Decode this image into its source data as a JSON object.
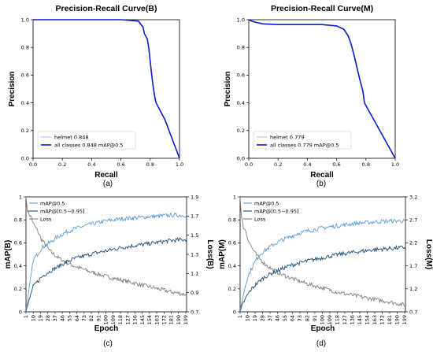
{
  "captions": [
    "(a)",
    "(b)",
    "(c)",
    "(d)"
  ],
  "chart_data": [
    {
      "type": "line",
      "title": "Precision-Recall Curve(B)",
      "xlabel": "Recall",
      "ylabel": "Precision",
      "xlim": [
        0,
        1
      ],
      "ylim": [
        0,
        1
      ],
      "xticks": [
        "0.0",
        "0.2",
        "0.4",
        "0.6",
        "0.8",
        "1.0"
      ],
      "yticks": [
        "0.0",
        "0.2",
        "0.4",
        "0.6",
        "0.8",
        "1.0"
      ],
      "legend_position": "bottom-left",
      "series": [
        {
          "name": "helmet 0.848",
          "color": "#87aef5",
          "x": [
            0,
            0.6,
            0.72,
            0.74,
            0.75,
            0.76,
            0.78,
            0.79,
            0.8,
            0.81,
            0.82,
            0.83,
            0.84,
            0.9,
            1.0
          ],
          "y": [
            1.0,
            1.0,
            0.99,
            0.96,
            0.95,
            0.9,
            0.86,
            0.8,
            0.7,
            0.6,
            0.52,
            0.45,
            0.4,
            0.28,
            0.0
          ]
        },
        {
          "name": "all classes 0.848 mAP@0.5",
          "color": "#0a1ccc",
          "x": [
            0,
            0.6,
            0.72,
            0.74,
            0.75,
            0.76,
            0.78,
            0.79,
            0.8,
            0.81,
            0.82,
            0.83,
            0.84,
            0.9,
            1.0
          ],
          "y": [
            1.0,
            1.0,
            0.99,
            0.96,
            0.95,
            0.9,
            0.86,
            0.8,
            0.7,
            0.6,
            0.52,
            0.45,
            0.4,
            0.28,
            0.0
          ]
        }
      ]
    },
    {
      "type": "line",
      "title": "Precision-Recall Curve(M)",
      "xlabel": "Recall",
      "ylabel": "Precision",
      "xlim": [
        0,
        1
      ],
      "ylim": [
        0,
        1
      ],
      "xticks": [
        "0.0",
        "0.2",
        "0.4",
        "0.6",
        "0.8",
        "1.0"
      ],
      "yticks": [
        "0.0",
        "0.2",
        "0.4",
        "0.6",
        "0.8",
        "1.0"
      ],
      "legend_position": "bottom-left",
      "series": [
        {
          "name": "helmet 0.779",
          "color": "#87aef5",
          "x": [
            0,
            0.02,
            0.05,
            0.1,
            0.2,
            0.5,
            0.6,
            0.65,
            0.68,
            0.7,
            0.72,
            0.74,
            0.76,
            0.78,
            0.79,
            1.0
          ],
          "y": [
            1.0,
            0.99,
            0.98,
            0.97,
            0.965,
            0.965,
            0.955,
            0.93,
            0.88,
            0.82,
            0.74,
            0.65,
            0.56,
            0.48,
            0.4,
            0.0
          ]
        },
        {
          "name": "all classes 0.779 mAP@0.5",
          "color": "#0a1ccc",
          "x": [
            0,
            0.02,
            0.05,
            0.1,
            0.2,
            0.5,
            0.6,
            0.65,
            0.68,
            0.7,
            0.72,
            0.74,
            0.76,
            0.78,
            0.79,
            1.0
          ],
          "y": [
            1.0,
            0.99,
            0.98,
            0.97,
            0.965,
            0.965,
            0.955,
            0.93,
            0.88,
            0.82,
            0.74,
            0.65,
            0.56,
            0.48,
            0.4,
            0.0
          ]
        }
      ]
    },
    {
      "type": "line",
      "title": "",
      "xlabel": "Epoch",
      "ylabel": "mAP(B)",
      "y2label": "Loss(B)",
      "xlim": [
        1,
        200
      ],
      "ylim": [
        0,
        1
      ],
      "y2lim": [
        0.7,
        1.9
      ],
      "xticks": [
        1,
        10,
        19,
        28,
        37,
        46,
        55,
        64,
        73,
        82,
        91,
        100,
        109,
        118,
        127,
        136,
        145,
        154,
        163,
        172,
        181,
        190,
        199
      ],
      "yticks": [
        "0",
        "0.2",
        "0.4",
        "0.6",
        "0.8",
        "1"
      ],
      "y2ticks": [
        "0.7",
        "0.9",
        "1.1",
        "1.3",
        "1.5",
        "1.7",
        "1.9"
      ],
      "legend_position": "top-left",
      "series": [
        {
          "name": "mAP@0.5",
          "color": "#5b9bd5",
          "axis": "left",
          "x": [
            1,
            3,
            5,
            8,
            10,
            15,
            20,
            25,
            30,
            40,
            50,
            60,
            70,
            80,
            100,
            120,
            140,
            160,
            180,
            199
          ],
          "y": [
            0.02,
            0.1,
            0.2,
            0.35,
            0.45,
            0.5,
            0.55,
            0.58,
            0.6,
            0.65,
            0.69,
            0.72,
            0.74,
            0.76,
            0.79,
            0.81,
            0.82,
            0.83,
            0.84,
            0.84
          ]
        },
        {
          "name": "mAP@[0.5~0.95]",
          "color": "#1f4e79",
          "axis": "left",
          "x": [
            1,
            3,
            5,
            8,
            10,
            15,
            20,
            25,
            30,
            40,
            50,
            60,
            70,
            80,
            100,
            120,
            140,
            160,
            180,
            199
          ],
          "y": [
            0.01,
            0.05,
            0.1,
            0.18,
            0.22,
            0.26,
            0.3,
            0.33,
            0.35,
            0.39,
            0.43,
            0.46,
            0.48,
            0.5,
            0.53,
            0.56,
            0.58,
            0.6,
            0.62,
            0.63
          ]
        },
        {
          "name": "Loss",
          "color": "#7f7f7f",
          "axis": "right",
          "x": [
            1,
            2,
            3,
            5,
            8,
            10,
            15,
            20,
            25,
            30,
            40,
            50,
            60,
            70,
            80,
            100,
            120,
            140,
            160,
            180,
            199
          ],
          "y": [
            1.9,
            1.82,
            1.76,
            1.72,
            1.68,
            1.62,
            1.55,
            1.46,
            1.4,
            1.34,
            1.27,
            1.22,
            1.18,
            1.15,
            1.12,
            1.07,
            1.03,
            0.99,
            0.95,
            0.91,
            0.88
          ]
        }
      ]
    },
    {
      "type": "line",
      "title": "",
      "xlabel": "Epoch",
      "ylabel": "mAP(M)",
      "y2label": "Loss(M)",
      "xlim": [
        1,
        200
      ],
      "ylim": [
        0,
        1
      ],
      "y2lim": [
        0.7,
        3.2
      ],
      "xticks": [
        1,
        10,
        19,
        28,
        37,
        46,
        55,
        64,
        73,
        82,
        91,
        100,
        109,
        118,
        127,
        136,
        145,
        154,
        163,
        172,
        181,
        190,
        199
      ],
      "yticks": [
        "0",
        "0.2",
        "0.4",
        "0.6",
        "0.8",
        "1"
      ],
      "y2ticks": [
        "0.7",
        "1.2",
        "1.7",
        "2.2",
        "2.7",
        "3.2"
      ],
      "legend_position": "top-left",
      "series": [
        {
          "name": "mAP@0.5",
          "color": "#5b9bd5",
          "axis": "left",
          "x": [
            1,
            3,
            5,
            8,
            10,
            15,
            20,
            25,
            30,
            40,
            50,
            60,
            70,
            80,
            100,
            120,
            140,
            160,
            180,
            199
          ],
          "y": [
            0.02,
            0.08,
            0.15,
            0.25,
            0.3,
            0.38,
            0.45,
            0.5,
            0.53,
            0.58,
            0.62,
            0.65,
            0.68,
            0.7,
            0.73,
            0.75,
            0.77,
            0.78,
            0.79,
            0.79
          ]
        },
        {
          "name": "mAP@[0.5~0.95]",
          "color": "#1f4e79",
          "axis": "left",
          "x": [
            1,
            3,
            5,
            8,
            10,
            15,
            20,
            25,
            30,
            40,
            50,
            60,
            70,
            80,
            100,
            120,
            140,
            160,
            180,
            199
          ],
          "y": [
            0.01,
            0.04,
            0.08,
            0.12,
            0.15,
            0.2,
            0.24,
            0.27,
            0.3,
            0.34,
            0.37,
            0.4,
            0.42,
            0.44,
            0.47,
            0.5,
            0.52,
            0.54,
            0.55,
            0.56
          ]
        },
        {
          "name": "Loss",
          "color": "#7f7f7f",
          "axis": "right",
          "x": [
            1,
            2,
            3,
            5,
            8,
            10,
            15,
            20,
            25,
            30,
            40,
            50,
            60,
            70,
            80,
            100,
            120,
            140,
            160,
            180,
            199
          ],
          "y": [
            3.2,
            2.9,
            2.7,
            2.55,
            2.45,
            2.3,
            2.1,
            1.95,
            1.85,
            1.75,
            1.62,
            1.52,
            1.45,
            1.38,
            1.32,
            1.22,
            1.12,
            1.05,
            0.98,
            0.92,
            0.85
          ]
        }
      ]
    }
  ]
}
